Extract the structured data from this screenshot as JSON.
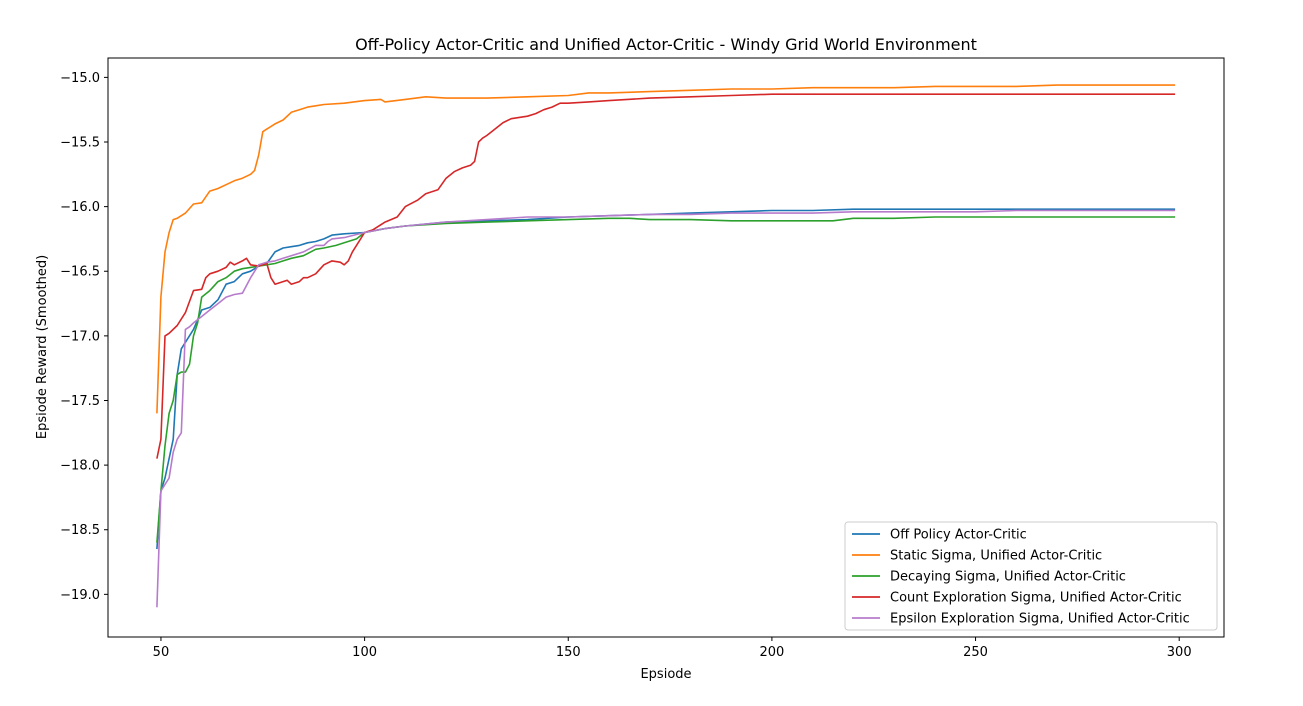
{
  "chart_data": {
    "type": "line",
    "title": "Off-Policy Actor-Critic and Unified Actor-Critic - Windy Grid World Environment",
    "xlabel": "Epsiode",
    "ylabel": "Epsiode Reward (Smoothed)",
    "xlim": [
      37,
      311
    ],
    "ylim": [
      -19.33,
      -14.85
    ],
    "xticks": [
      50,
      100,
      150,
      200,
      250,
      300
    ],
    "yticks": [
      -15.0,
      -15.5,
      -16.0,
      -16.5,
      -17.0,
      -17.5,
      -18.0,
      -18.5,
      -19.0
    ],
    "ytick_labels": [
      "−15.0",
      "−15.5",
      "−16.0",
      "−16.5",
      "−17.0",
      "−17.5",
      "−18.0",
      "−18.5",
      "−19.0"
    ],
    "grid": false,
    "legend_position": "lower-right",
    "series": [
      {
        "name": "Off Policy Actor-Critic",
        "color": "#1f77b4",
        "x": [
          49,
          50,
          51,
          52,
          53,
          54,
          55,
          56,
          58,
          60,
          62,
          64,
          66,
          68,
          70,
          72,
          74,
          76,
          78,
          80,
          82,
          84,
          86,
          88,
          90,
          92,
          95,
          100,
          105,
          110,
          120,
          130,
          140,
          150,
          160,
          170,
          180,
          190,
          200,
          210,
          220,
          230,
          240,
          250,
          260,
          270,
          280,
          290,
          299
        ],
        "y": [
          -18.65,
          -18.2,
          -18.1,
          -17.95,
          -17.8,
          -17.3,
          -17.1,
          -17.05,
          -16.95,
          -16.8,
          -16.78,
          -16.72,
          -16.6,
          -16.58,
          -16.52,
          -16.5,
          -16.46,
          -16.44,
          -16.35,
          -16.32,
          -16.31,
          -16.3,
          -16.28,
          -16.27,
          -16.25,
          -16.22,
          -16.21,
          -16.2,
          -16.17,
          -16.15,
          -16.12,
          -16.11,
          -16.1,
          -16.08,
          -16.07,
          -16.06,
          -16.05,
          -16.04,
          -16.03,
          -16.03,
          -16.02,
          -16.02,
          -16.02,
          -16.02,
          -16.02,
          -16.02,
          -16.02,
          -16.02,
          -16.02
        ]
      },
      {
        "name": "Static Sigma, Unified Actor-Critic",
        "color": "#ff7f0e",
        "x": [
          49,
          50,
          51,
          52,
          53,
          54,
          56,
          58,
          60,
          62,
          64,
          66,
          68,
          70,
          72,
          73,
          74,
          75,
          76,
          78,
          80,
          82,
          84,
          86,
          88,
          90,
          95,
          100,
          104,
          105,
          110,
          115,
          120,
          130,
          140,
          150,
          155,
          160,
          170,
          180,
          190,
          200,
          210,
          220,
          230,
          240,
          250,
          260,
          270,
          280,
          290,
          299
        ],
        "y": [
          -17.6,
          -16.7,
          -16.35,
          -16.2,
          -16.1,
          -16.09,
          -16.05,
          -15.98,
          -15.97,
          -15.88,
          -15.86,
          -15.83,
          -15.8,
          -15.78,
          -15.75,
          -15.72,
          -15.6,
          -15.42,
          -15.4,
          -15.36,
          -15.33,
          -15.27,
          -15.25,
          -15.23,
          -15.22,
          -15.21,
          -15.2,
          -15.18,
          -15.17,
          -15.19,
          -15.17,
          -15.15,
          -15.16,
          -15.16,
          -15.15,
          -15.14,
          -15.12,
          -15.12,
          -15.11,
          -15.1,
          -15.09,
          -15.09,
          -15.08,
          -15.08,
          -15.08,
          -15.07,
          -15.07,
          -15.07,
          -15.06,
          -15.06,
          -15.06,
          -15.06
        ]
      },
      {
        "name": "Decaying Sigma, Unified Actor-Critic",
        "color": "#2ca02c",
        "x": [
          49,
          50,
          51,
          52,
          53,
          54,
          55,
          56,
          57,
          58,
          59,
          60,
          62,
          64,
          66,
          68,
          70,
          72,
          74,
          76,
          78,
          80,
          82,
          85,
          88,
          90,
          93,
          95,
          98,
          100,
          105,
          110,
          120,
          130,
          140,
          150,
          160,
          165,
          170,
          180,
          190,
          200,
          210,
          215,
          220,
          230,
          240,
          250,
          260,
          270,
          280,
          290,
          299
        ],
        "y": [
          -18.6,
          -18.2,
          -17.85,
          -17.6,
          -17.5,
          -17.3,
          -17.28,
          -17.28,
          -17.22,
          -17.0,
          -16.9,
          -16.7,
          -16.65,
          -16.58,
          -16.55,
          -16.5,
          -16.48,
          -16.47,
          -16.46,
          -16.45,
          -16.44,
          -16.42,
          -16.4,
          -16.38,
          -16.33,
          -16.32,
          -16.3,
          -16.28,
          -16.25,
          -16.2,
          -16.17,
          -16.15,
          -16.13,
          -16.12,
          -16.11,
          -16.1,
          -16.09,
          -16.09,
          -16.1,
          -16.1,
          -16.11,
          -16.11,
          -16.11,
          -16.11,
          -16.09,
          -16.09,
          -16.08,
          -16.08,
          -16.08,
          -16.08,
          -16.08,
          -16.08,
          -16.08
        ]
      },
      {
        "name": "Count Exploration Sigma, Unified Actor-Critic",
        "color": "#d62728",
        "x": [
          49,
          50,
          51,
          52,
          54,
          56,
          58,
          60,
          61,
          62,
          64,
          66,
          67,
          68,
          70,
          71,
          72,
          74,
          76,
          77,
          78,
          80,
          81,
          82,
          84,
          85,
          86,
          88,
          90,
          92,
          94,
          95,
          96,
          97,
          98,
          100,
          102,
          105,
          108,
          110,
          113,
          115,
          118,
          120,
          122,
          124,
          126,
          127,
          128,
          129,
          130,
          132,
          134,
          136,
          140,
          142,
          144,
          146,
          148,
          150,
          155,
          160,
          170,
          180,
          190,
          200,
          210,
          220,
          230,
          240,
          250,
          260,
          270,
          280,
          290,
          299
        ],
        "y": [
          -17.95,
          -17.8,
          -17.0,
          -16.98,
          -16.92,
          -16.82,
          -16.65,
          -16.64,
          -16.55,
          -16.52,
          -16.5,
          -16.47,
          -16.43,
          -16.45,
          -16.42,
          -16.4,
          -16.45,
          -16.46,
          -16.44,
          -16.55,
          -16.6,
          -16.58,
          -16.57,
          -16.6,
          -16.58,
          -16.55,
          -16.55,
          -16.52,
          -16.45,
          -16.42,
          -16.43,
          -16.45,
          -16.42,
          -16.35,
          -16.3,
          -16.2,
          -16.18,
          -16.12,
          -16.08,
          -16.0,
          -15.95,
          -15.9,
          -15.87,
          -15.78,
          -15.73,
          -15.7,
          -15.68,
          -15.65,
          -15.5,
          -15.47,
          -15.45,
          -15.4,
          -15.35,
          -15.32,
          -15.3,
          -15.28,
          -15.25,
          -15.23,
          -15.2,
          -15.2,
          -15.19,
          -15.18,
          -15.16,
          -15.15,
          -15.14,
          -15.13,
          -15.13,
          -15.13,
          -15.13,
          -15.13,
          -15.13,
          -15.13,
          -15.13,
          -15.13,
          -15.13,
          -15.13
        ]
      },
      {
        "name": "Epsilon Exploration Sigma, Unified Actor-Critic",
        "color": "#b77bcc",
        "x": [
          49,
          50,
          51,
          52,
          53,
          54,
          55,
          56,
          57,
          58,
          60,
          62,
          64,
          66,
          68,
          70,
          72,
          74,
          76,
          78,
          80,
          85,
          88,
          90,
          91,
          92,
          95,
          100,
          105,
          110,
          120,
          130,
          140,
          150,
          160,
          170,
          180,
          190,
          200,
          210,
          220,
          230,
          240,
          250,
          260,
          270,
          280,
          290,
          299
        ],
        "y": [
          -19.1,
          -18.2,
          -18.15,
          -18.1,
          -17.9,
          -17.8,
          -17.75,
          -16.95,
          -16.93,
          -16.9,
          -16.85,
          -16.8,
          -16.75,
          -16.7,
          -16.68,
          -16.67,
          -16.55,
          -16.45,
          -16.43,
          -16.42,
          -16.4,
          -16.35,
          -16.3,
          -16.3,
          -16.27,
          -16.25,
          -16.24,
          -16.2,
          -16.17,
          -16.15,
          -16.12,
          -16.1,
          -16.08,
          -16.08,
          -16.07,
          -16.06,
          -16.06,
          -16.05,
          -16.05,
          -16.05,
          -16.04,
          -16.04,
          -16.04,
          -16.04,
          -16.03,
          -16.03,
          -16.03,
          -16.03,
          -16.03
        ]
      }
    ]
  }
}
